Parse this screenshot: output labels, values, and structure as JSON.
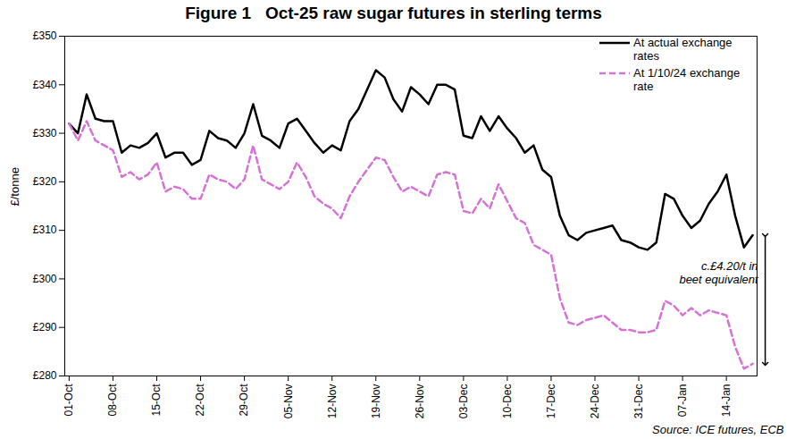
{
  "chart_data": {
    "type": "line",
    "title": "Figure 1   Oct-25 raw sugar futures in sterling terms",
    "y_label": "£/tonne",
    "categories": [
      "01-Oct",
      null,
      null,
      null,
      null,
      "08-Oct",
      null,
      null,
      null,
      null,
      "15-Oct",
      null,
      null,
      null,
      null,
      "22-Oct",
      null,
      null,
      null,
      null,
      "29-Oct",
      null,
      null,
      null,
      null,
      "05-Nov",
      null,
      null,
      null,
      null,
      "12-Nov",
      null,
      null,
      null,
      null,
      "19-Nov",
      null,
      null,
      null,
      null,
      "26-Nov",
      null,
      null,
      null,
      null,
      "03-Dec",
      null,
      null,
      null,
      null,
      "10-Dec",
      null,
      null,
      null,
      null,
      "17-Dec",
      null,
      null,
      null,
      null,
      "24-Dec",
      null,
      null,
      null,
      null,
      "31-Dec",
      null,
      null,
      null,
      null,
      "07-Jan",
      null,
      null,
      null,
      null,
      "14-Jan",
      null,
      null,
      null
    ],
    "series": [
      {
        "name": "At actual exchange rates",
        "color": "#000000",
        "line_style": "solid",
        "values": [
          332,
          330,
          338,
          333,
          332.5,
          332.5,
          326,
          327.5,
          327,
          328,
          330,
          325,
          326,
          326,
          323.5,
          324.5,
          330.5,
          329,
          328.5,
          327,
          330,
          336,
          329.5,
          328.5,
          327,
          332,
          333,
          330.5,
          328,
          326,
          327.5,
          326.5,
          332.5,
          335,
          339,
          343,
          341.5,
          337,
          334.5,
          339.5,
          338,
          336,
          340,
          340,
          339,
          329.5,
          329,
          333.5,
          330.5,
          333.5,
          331,
          329,
          326,
          327.5,
          322.5,
          321,
          313,
          309,
          308,
          309.5,
          310,
          310.5,
          311,
          308,
          307.5,
          306.5,
          306,
          307.5,
          317.5,
          316.5,
          313,
          310.5,
          312,
          315.5,
          318,
          321.5,
          313,
          306.5,
          309
        ]
      },
      {
        "name": "At 1/10/24 exchange rate",
        "color": "#d572d5",
        "line_style": "dashed",
        "values": [
          332,
          328.5,
          332.5,
          328.5,
          327.5,
          326.5,
          321,
          322,
          320.5,
          321.5,
          324,
          318,
          319,
          318.5,
          316.5,
          316.5,
          321.5,
          320.5,
          320,
          318.5,
          320.5,
          327.5,
          320.5,
          319.5,
          318.5,
          320,
          324,
          321,
          317,
          315.5,
          314.5,
          312.5,
          317,
          320,
          322.5,
          325,
          324.5,
          321,
          318,
          319,
          318,
          317,
          321.5,
          322,
          321.5,
          314,
          313.5,
          316.5,
          314.5,
          319.5,
          316,
          312.5,
          311.5,
          307,
          306,
          305,
          296,
          291,
          290.5,
          291.5,
          292,
          292.5,
          291,
          289.5,
          289.5,
          289,
          289,
          289.5,
          295.5,
          294.5,
          292.5,
          294,
          292.5,
          293.5,
          293,
          292.5,
          286,
          281.5,
          282.5
        ]
      }
    ],
    "ylim": [
      280,
      350
    ],
    "yticks": [
      {
        "value": 280,
        "label": "£280"
      },
      {
        "value": 290,
        "label": "£290"
      },
      {
        "value": 300,
        "label": "£300"
      },
      {
        "value": 310,
        "label": "£310"
      },
      {
        "value": 320,
        "label": "£320"
      },
      {
        "value": 330,
        "label": "£330"
      },
      {
        "value": 340,
        "label": "£340"
      },
      {
        "value": 350,
        "label": "£350"
      }
    ],
    "grid": false,
    "legend": "top-right",
    "annotation": "c.£4.20/t in beet equivalent",
    "source": "Source: ICE futures, ECB"
  }
}
